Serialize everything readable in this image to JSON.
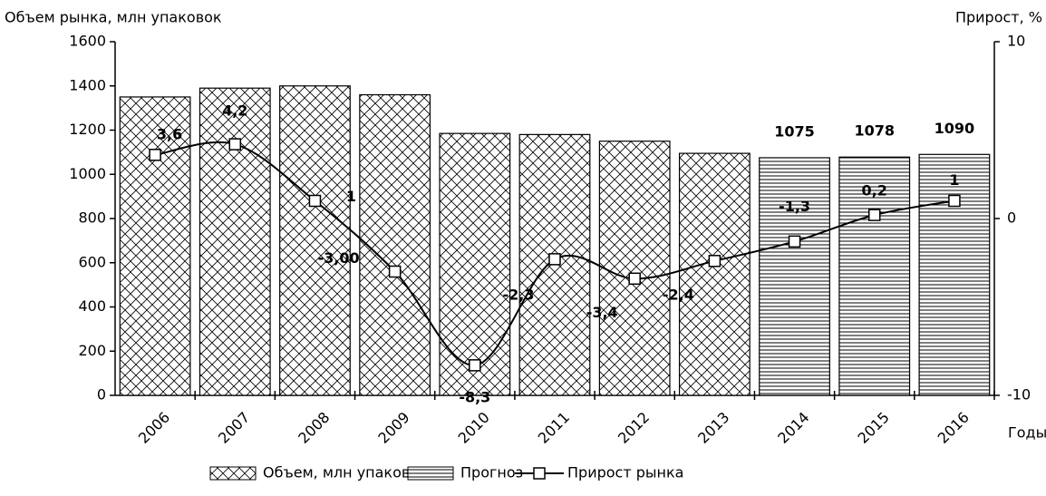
{
  "chart_data": {
    "type": "bar",
    "y_label": "Объем рынка, млн упаковок",
    "y2_label": "Прирост, %",
    "x_label": "Годы",
    "categories": [
      "2006",
      "2007",
      "2008",
      "2009",
      "2010",
      "2011",
      "2012",
      "2013",
      "2014",
      "2015",
      "2016"
    ],
    "series": [
      {
        "name": "Объем, млн упаковок",
        "type": "bar",
        "pattern": "crosshatch",
        "color": "#000000",
        "values": [
          1350,
          1390,
          1400,
          1360,
          1185,
          1180,
          1150,
          1095,
          null,
          null,
          null
        ]
      },
      {
        "name": "Прогноз",
        "type": "bar",
        "pattern": "horizontal",
        "color": "#000000",
        "show_values": true,
        "values": [
          null,
          null,
          null,
          null,
          null,
          null,
          null,
          null,
          1075,
          1078,
          1090
        ]
      },
      {
        "name": "Прирост рынка",
        "type": "line",
        "axis": "y2",
        "color": "#000000",
        "marker": "square",
        "values": [
          3.6,
          4.2,
          1,
          -3.0,
          -8.3,
          -2.3,
          -3.4,
          -2.4,
          -1.3,
          0.2,
          1
        ],
        "value_labels": [
          "3,6",
          "4,2",
          "1",
          "-3,00",
          "-8,3",
          "-2,3",
          "-3,4",
          "-2,4",
          "-1,3",
          "0,2",
          "1"
        ]
      }
    ],
    "ylim": [
      0,
      1600
    ],
    "yticks": [
      0,
      200,
      400,
      600,
      800,
      1000,
      1200,
      1400,
      1600
    ],
    "y2lim": [
      -10,
      10
    ],
    "y2ticks": [
      -10,
      0,
      10
    ],
    "grid": false,
    "legend": "bottom"
  }
}
